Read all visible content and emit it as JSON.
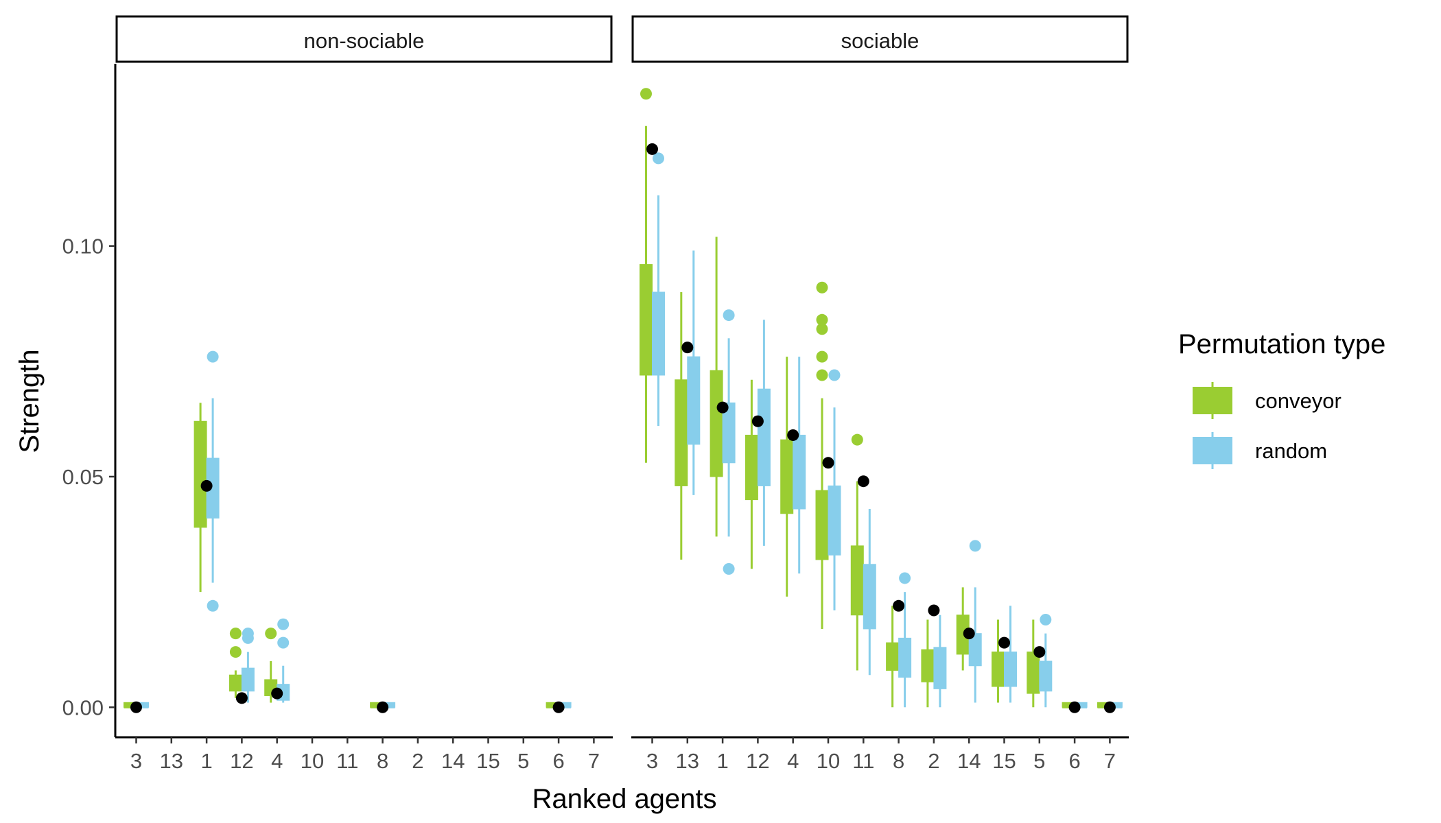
{
  "chart_data": {
    "type": "boxplot",
    "xlabel": "Ranked agents",
    "ylabel": "Strength",
    "ylim": [
      -0.0065,
      0.1395
    ],
    "yticks": [
      0.0,
      0.05,
      0.1
    ],
    "ytick_labels": [
      "0.00",
      "0.05",
      "0.10"
    ],
    "grid": false,
    "legend": {
      "title": "Permutation type",
      "position": "right",
      "entries": [
        {
          "name": "conveyor",
          "color": "#9acd32"
        },
        {
          "name": "random",
          "color": "#87ceeb"
        }
      ]
    },
    "panels": [
      {
        "title": "non-sociable",
        "categories": [
          "3",
          "13",
          "1",
          "12",
          "4",
          "10",
          "11",
          "8",
          "2",
          "14",
          "15",
          "5",
          "6",
          "7"
        ],
        "series": [
          {
            "name": "conveyor",
            "color": "#9acd32",
            "boxes": [
              {
                "cat": "3",
                "lw": 0,
                "q1": 0,
                "med": 0,
                "q3": 0.001,
                "uw": 0.001,
                "outliers": []
              },
              {
                "cat": "1",
                "lw": 0.025,
                "q1": 0.039,
                "med": 0.048,
                "q3": 0.062,
                "uw": 0.066,
                "outliers": []
              },
              {
                "cat": "12",
                "lw": 0.002,
                "q1": 0.0035,
                "med": 0.0055,
                "q3": 0.007,
                "uw": 0.008,
                "outliers": [
                  0.012,
                  0.016
                ]
              },
              {
                "cat": "4",
                "lw": 0.001,
                "q1": 0.0025,
                "med": 0.004,
                "q3": 0.006,
                "uw": 0.01,
                "outliers": [
                  0.016
                ]
              },
              {
                "cat": "8",
                "lw": 0,
                "q1": 0,
                "med": 0,
                "q3": 0.001,
                "uw": 0.001,
                "outliers": []
              },
              {
                "cat": "6",
                "lw": 0,
                "q1": 0,
                "med": 0,
                "q3": 0.001,
                "uw": 0.001,
                "outliers": []
              }
            ]
          },
          {
            "name": "random",
            "color": "#87ceeb",
            "boxes": [
              {
                "cat": "3",
                "lw": 0,
                "q1": 0,
                "med": 0,
                "q3": 0.001,
                "uw": 0.001,
                "outliers": []
              },
              {
                "cat": "1",
                "lw": 0.027,
                "q1": 0.041,
                "med": 0.048,
                "q3": 0.054,
                "uw": 0.067,
                "outliers": [
                  0.076,
                  0.022
                ]
              },
              {
                "cat": "12",
                "lw": 0.001,
                "q1": 0.0035,
                "med": 0.006,
                "q3": 0.0085,
                "uw": 0.012,
                "outliers": [
                  0.015,
                  0.016
                ]
              },
              {
                "cat": "4",
                "lw": 0.001,
                "q1": 0.0015,
                "med": 0.003,
                "q3": 0.005,
                "uw": 0.009,
                "outliers": [
                  0.014,
                  0.018
                ]
              },
              {
                "cat": "8",
                "lw": 0,
                "q1": 0,
                "med": 0,
                "q3": 0.001,
                "uw": 0.001,
                "outliers": []
              },
              {
                "cat": "6",
                "lw": 0,
                "q1": 0,
                "med": 0,
                "q3": 0.001,
                "uw": 0.001,
                "outliers": []
              }
            ]
          }
        ],
        "observed": [
          {
            "cat": "3",
            "value": 0
          },
          {
            "cat": "1",
            "value": 0.048
          },
          {
            "cat": "12",
            "value": 0.002
          },
          {
            "cat": "4",
            "value": 0.003
          },
          {
            "cat": "8",
            "value": 0
          },
          {
            "cat": "6",
            "value": 0
          }
        ]
      },
      {
        "title": "sociable",
        "categories": [
          "3",
          "13",
          "1",
          "12",
          "4",
          "10",
          "11",
          "8",
          "2",
          "14",
          "15",
          "5",
          "6",
          "7"
        ],
        "series": [
          {
            "name": "conveyor",
            "color": "#9acd32",
            "boxes": [
              {
                "cat": "3",
                "lw": 0.053,
                "q1": 0.072,
                "med": 0.083,
                "q3": 0.096,
                "uw": 0.126,
                "outliers": [
                  0.133
                ]
              },
              {
                "cat": "13",
                "lw": 0.032,
                "q1": 0.048,
                "med": 0.06,
                "q3": 0.071,
                "uw": 0.09,
                "outliers": []
              },
              {
                "cat": "1",
                "lw": 0.037,
                "q1": 0.05,
                "med": 0.062,
                "q3": 0.073,
                "uw": 0.102,
                "outliers": []
              },
              {
                "cat": "12",
                "lw": 0.03,
                "q1": 0.045,
                "med": 0.052,
                "q3": 0.059,
                "uw": 0.071,
                "outliers": []
              },
              {
                "cat": "4",
                "lw": 0.024,
                "q1": 0.042,
                "med": 0.05,
                "q3": 0.058,
                "uw": 0.076,
                "outliers": []
              },
              {
                "cat": "10",
                "lw": 0.017,
                "q1": 0.032,
                "med": 0.04,
                "q3": 0.047,
                "uw": 0.067,
                "outliers": [
                  0.072,
                  0.076,
                  0.082,
                  0.084,
                  0.091
                ]
              },
              {
                "cat": "11",
                "lw": 0.008,
                "q1": 0.02,
                "med": 0.028,
                "q3": 0.035,
                "uw": 0.049,
                "outliers": [
                  0.058
                ]
              },
              {
                "cat": "8",
                "lw": 0,
                "q1": 0.008,
                "med": 0.011,
                "q3": 0.014,
                "uw": 0.022,
                "outliers": []
              },
              {
                "cat": "2",
                "lw": 0,
                "q1": 0.0055,
                "med": 0.009,
                "q3": 0.0125,
                "uw": 0.019,
                "outliers": []
              },
              {
                "cat": "14",
                "lw": 0.008,
                "q1": 0.0115,
                "med": 0.015,
                "q3": 0.02,
                "uw": 0.026,
                "outliers": []
              },
              {
                "cat": "15",
                "lw": 0.001,
                "q1": 0.0045,
                "med": 0.008,
                "q3": 0.012,
                "uw": 0.019,
                "outliers": []
              },
              {
                "cat": "5",
                "lw": 0,
                "q1": 0.003,
                "med": 0.007,
                "q3": 0.012,
                "uw": 0.019,
                "outliers": []
              },
              {
                "cat": "6",
                "lw": 0,
                "q1": 0,
                "med": 0,
                "q3": 0.001,
                "uw": 0.001,
                "outliers": []
              },
              {
                "cat": "7",
                "lw": 0,
                "q1": 0,
                "med": 0,
                "q3": 0.001,
                "uw": 0.001,
                "outliers": []
              }
            ]
          },
          {
            "name": "random",
            "color": "#87ceeb",
            "boxes": [
              {
                "cat": "3",
                "lw": 0.061,
                "q1": 0.072,
                "med": 0.08,
                "q3": 0.09,
                "uw": 0.111,
                "outliers": [
                  0.119
                ]
              },
              {
                "cat": "13",
                "lw": 0.046,
                "q1": 0.057,
                "med": 0.066,
                "q3": 0.076,
                "uw": 0.099,
                "outliers": []
              },
              {
                "cat": "1",
                "lw": 0.037,
                "q1": 0.053,
                "med": 0.058,
                "q3": 0.066,
                "uw": 0.08,
                "outliers": [
                  0.085,
                  0.03
                ]
              },
              {
                "cat": "12",
                "lw": 0.035,
                "q1": 0.048,
                "med": 0.06,
                "q3": 0.069,
                "uw": 0.084,
                "outliers": []
              },
              {
                "cat": "4",
                "lw": 0.029,
                "q1": 0.043,
                "med": 0.05,
                "q3": 0.059,
                "uw": 0.076,
                "outliers": []
              },
              {
                "cat": "10",
                "lw": 0.021,
                "q1": 0.033,
                "med": 0.04,
                "q3": 0.048,
                "uw": 0.065,
                "outliers": [
                  0.072
                ]
              },
              {
                "cat": "11",
                "lw": 0.007,
                "q1": 0.017,
                "med": 0.024,
                "q3": 0.031,
                "uw": 0.043,
                "outliers": []
              },
              {
                "cat": "8",
                "lw": 0,
                "q1": 0.0065,
                "med": 0.01,
                "q3": 0.015,
                "uw": 0.025,
                "outliers": [
                  0.028
                ]
              },
              {
                "cat": "2",
                "lw": 0,
                "q1": 0.004,
                "med": 0.008,
                "q3": 0.013,
                "uw": 0.02,
                "outliers": []
              },
              {
                "cat": "14",
                "lw": 0.001,
                "q1": 0.009,
                "med": 0.012,
                "q3": 0.016,
                "uw": 0.026,
                "outliers": [
                  0.035
                ]
              },
              {
                "cat": "15",
                "lw": 0.001,
                "q1": 0.0045,
                "med": 0.008,
                "q3": 0.012,
                "uw": 0.022,
                "outliers": []
              },
              {
                "cat": "5",
                "lw": 0,
                "q1": 0.0035,
                "med": 0.006,
                "q3": 0.01,
                "uw": 0.016,
                "outliers": [
                  0.019
                ]
              },
              {
                "cat": "6",
                "lw": 0,
                "q1": 0,
                "med": 0,
                "q3": 0.001,
                "uw": 0.001,
                "outliers": []
              },
              {
                "cat": "7",
                "lw": 0,
                "q1": 0,
                "med": 0,
                "q3": 0.001,
                "uw": 0.001,
                "outliers": []
              }
            ]
          }
        ],
        "observed": [
          {
            "cat": "3",
            "value": 0.121
          },
          {
            "cat": "13",
            "value": 0.078
          },
          {
            "cat": "1",
            "value": 0.065
          },
          {
            "cat": "12",
            "value": 0.062
          },
          {
            "cat": "4",
            "value": 0.059
          },
          {
            "cat": "10",
            "value": 0.053
          },
          {
            "cat": "11",
            "value": 0.049
          },
          {
            "cat": "8",
            "value": 0.022
          },
          {
            "cat": "2",
            "value": 0.021
          },
          {
            "cat": "14",
            "value": 0.016
          },
          {
            "cat": "15",
            "value": 0.014
          },
          {
            "cat": "5",
            "value": 0.012
          },
          {
            "cat": "6",
            "value": 0
          },
          {
            "cat": "7",
            "value": 0
          }
        ]
      }
    ]
  }
}
